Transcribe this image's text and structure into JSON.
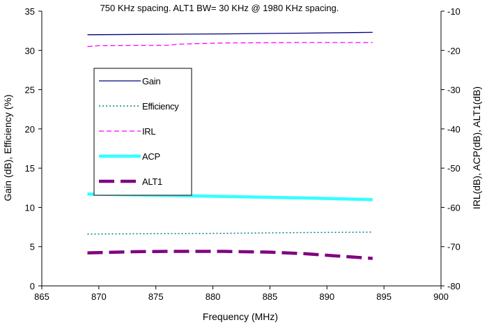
{
  "chart_data": {
    "type": "line",
    "title": "750 KHz  spacing.    ALT1 BW= 30 KHz @ 1980 KHz spacing.",
    "xlabel": "Frequency (MHz)",
    "ylabel": "Gain (dB), Efficiency (%)",
    "y2label": "IRL(dB), ACP(dB), ALT1(dB)",
    "xlim": [
      865,
      900
    ],
    "ylim": [
      0,
      35
    ],
    "y2lim": [
      -80,
      -10
    ],
    "x_ticks": [
      865,
      870,
      875,
      880,
      885,
      890,
      895,
      900
    ],
    "y_ticks": [
      0,
      5,
      10,
      15,
      20,
      25,
      30,
      35
    ],
    "y2_ticks": [
      -80,
      -70,
      -60,
      -50,
      -40,
      -30,
      -20,
      -10
    ],
    "grid": false,
    "legend_position": "upper-left-inside",
    "series": [
      {
        "name": "Gain",
        "axis": "left",
        "color": "#000080",
        "style": "solid",
        "x": [
          869,
          875,
          881,
          888,
          894
        ],
        "y": [
          32.0,
          32.05,
          32.1,
          32.2,
          32.3
        ]
      },
      {
        "name": "Efficiency",
        "axis": "left",
        "color": "#008080",
        "style": "dotted",
        "x": [
          869,
          875,
          881,
          888,
          894
        ],
        "y": [
          6.6,
          6.65,
          6.7,
          6.8,
          6.85
        ]
      },
      {
        "name": "IRL",
        "axis": "right",
        "color": "#ff00ff",
        "style": "dashed",
        "x": [
          869,
          870,
          876,
          877,
          881,
          888,
          894
        ],
        "y": [
          -19.0,
          -18.8,
          -18.7,
          -18.4,
          -18.1,
          -18.0,
          -18.0
        ]
      },
      {
        "name": "ACP",
        "axis": "right",
        "color": "#33ffff",
        "style": "thick",
        "x": [
          869,
          875,
          881,
          888,
          894
        ],
        "y": [
          -56.6,
          -56.9,
          -57.2,
          -57.6,
          -58.0
        ]
      },
      {
        "name": "ALT1",
        "axis": "right",
        "color": "#800080",
        "style": "thick-dashed",
        "x": [
          869,
          873,
          876,
          881,
          885,
          888,
          891,
          894
        ],
        "y": [
          -71.6,
          -71.3,
          -71.2,
          -71.2,
          -71.4,
          -71.8,
          -72.4,
          -73.0
        ]
      }
    ]
  }
}
